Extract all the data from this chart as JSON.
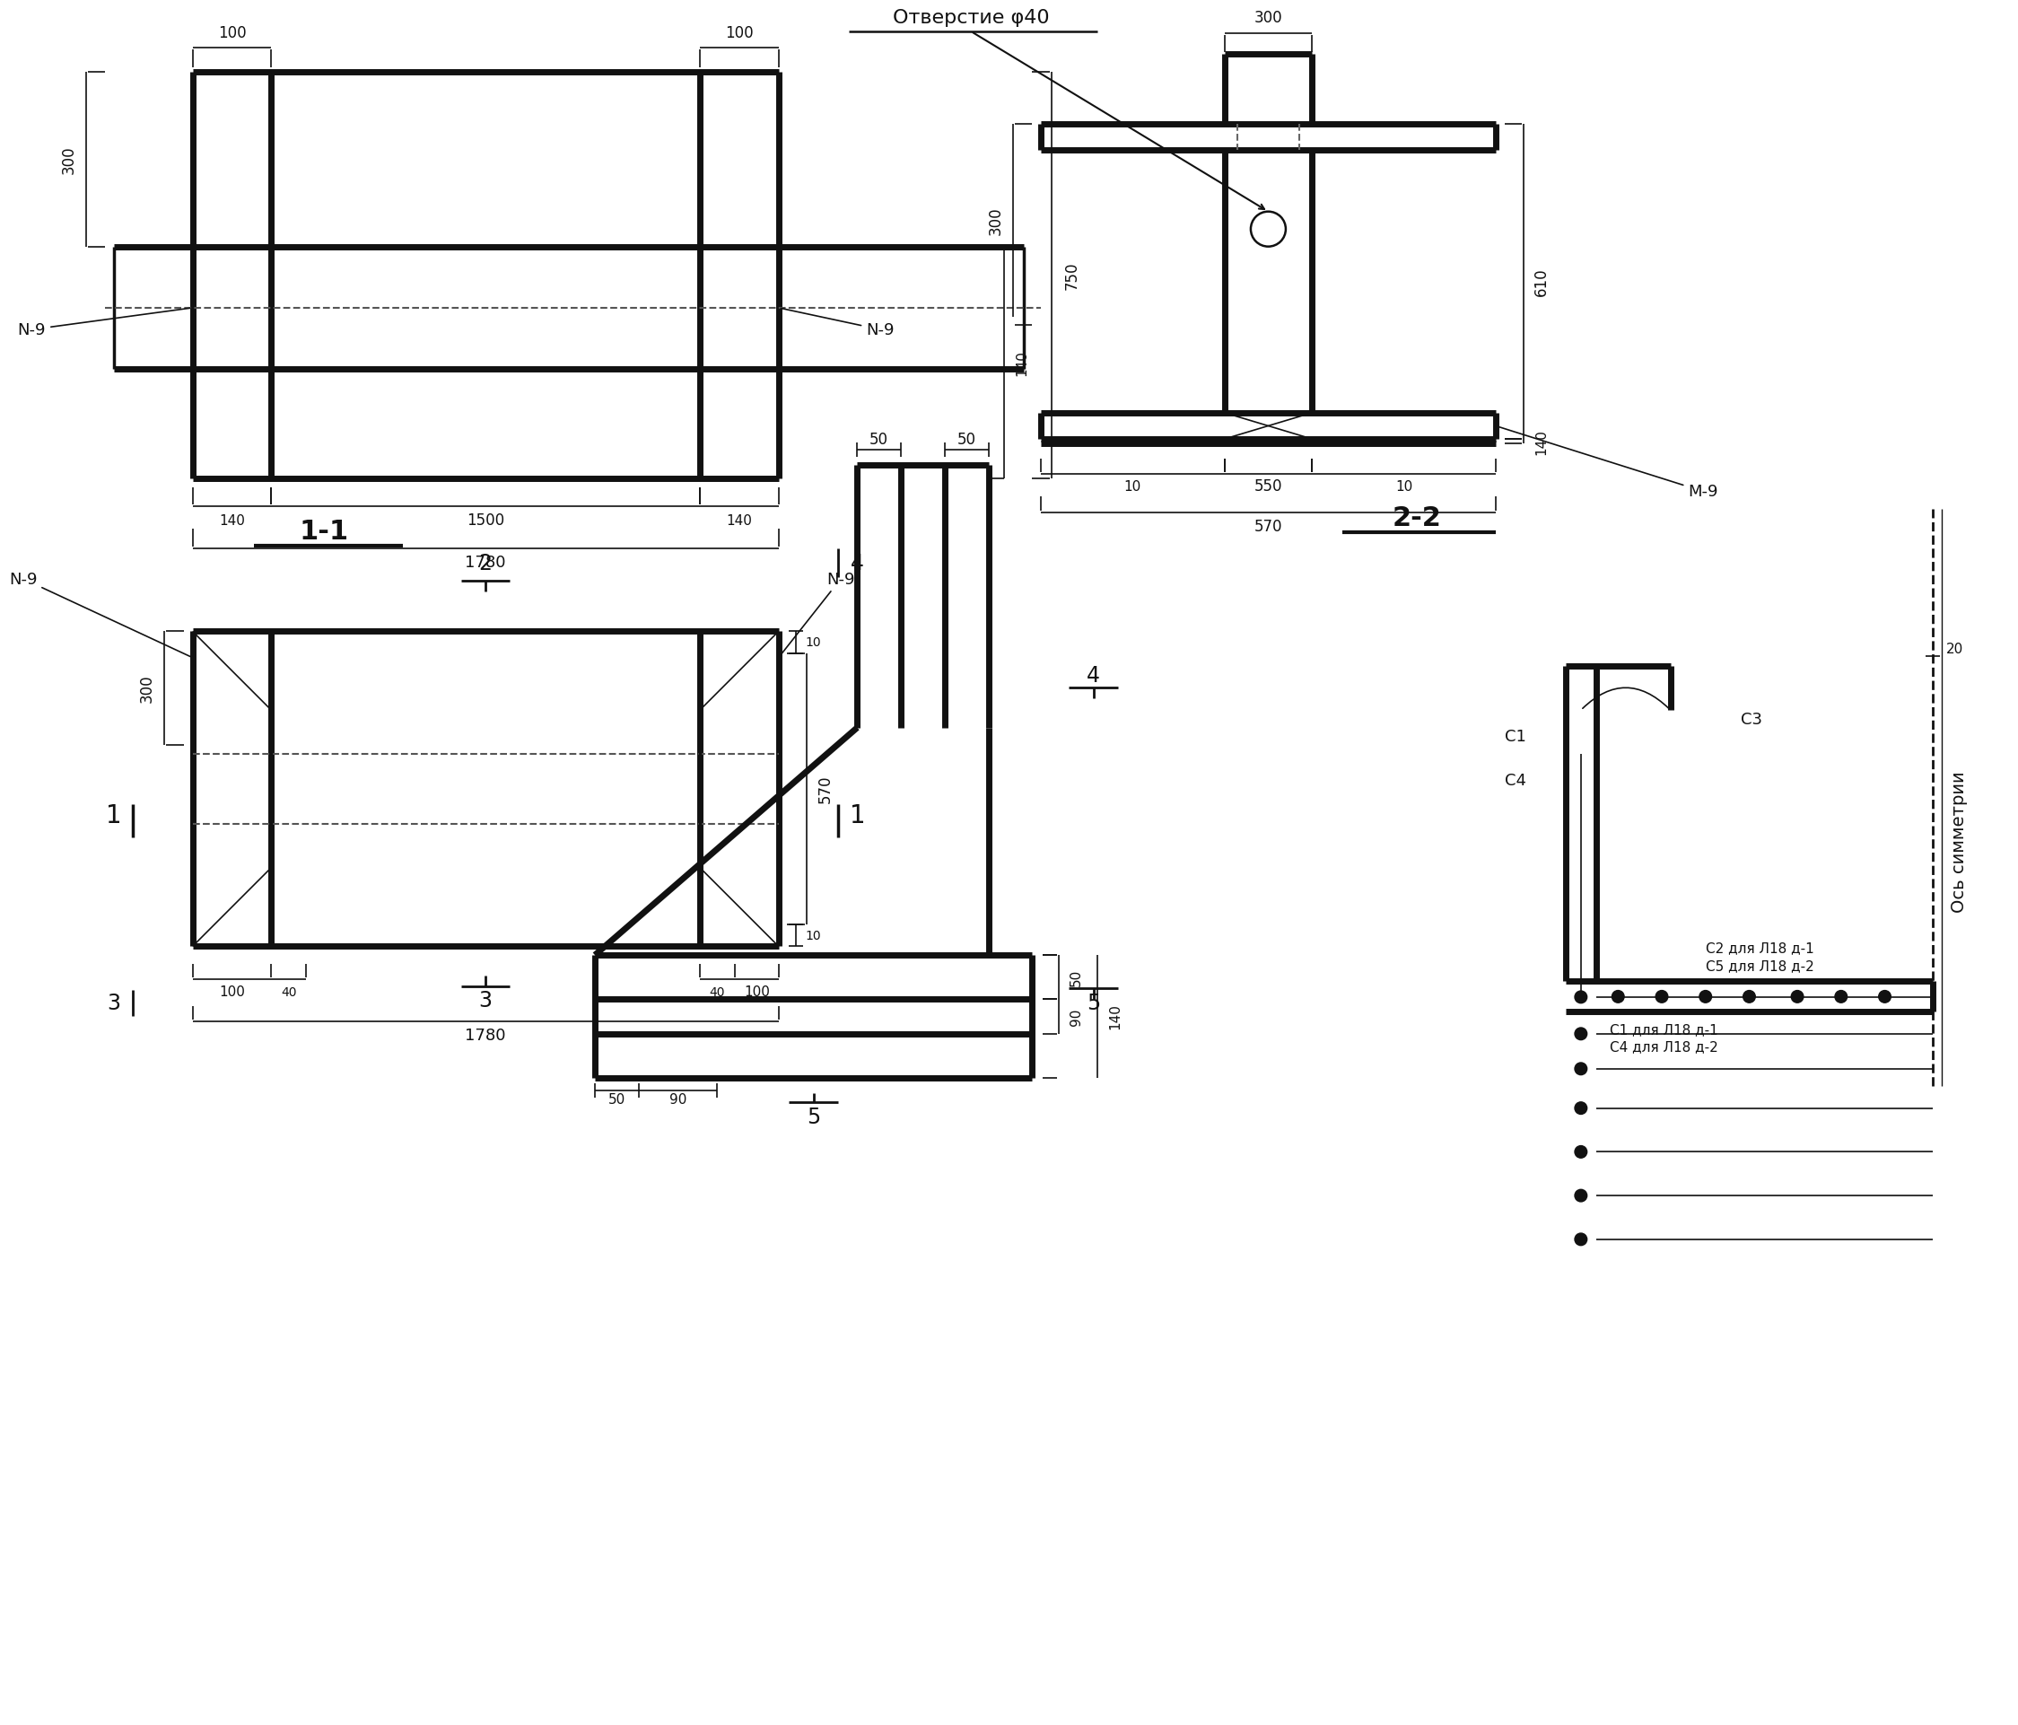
{
  "bg_color": "#ffffff",
  "line_color": "#111111",
  "line_width": 2.5,
  "thin_lw": 1.2,
  "dash_lw": 1.5,
  "views": {
    "top_left": {
      "label": "1-1",
      "dim_100_l": "100",
      "dim_100_r": "100",
      "dim_300": "300",
      "dim_140_l": "140",
      "dim_1500": "1500",
      "dim_140_r": "140",
      "dim_1780": "1780",
      "dim_750": "750",
      "dim_140_side": "140",
      "M9_left": "N-9",
      "M9_right": "N-9"
    },
    "top_right": {
      "label": "2-2",
      "dim_300_top": "300",
      "dim_300_left": "300",
      "dim_610": "610",
      "dim_140": "140",
      "dim_10_l": "10",
      "dim_550": "550",
      "dim_10_r": "10",
      "dim_570": "570",
      "M9": "M-9",
      "otv_label": "Отверстие φ40"
    },
    "bottom_left": {
      "dim_300": "300",
      "dim_570": "570",
      "dim_10_top": "10",
      "dim_10_bot": "10",
      "dim_100_l": "100",
      "dim_40_l": "40",
      "dim_40_r": "40",
      "dim_100_r": "100",
      "dim_1780": "1780",
      "M9_left": "N-9",
      "M9_right": "N-9",
      "cut_2": "2",
      "cut_3": "3",
      "cut_4": "4",
      "cut_1l": "1",
      "cut_1r": "1",
      "cut_3b": "3"
    },
    "bottom_mid": {
      "dim_50_l": "50",
      "dim_50_r": "50",
      "dim_50_bot": "50",
      "dim_90": "90",
      "dim_140": "140",
      "cut_4": "4",
      "cut_5t": "5",
      "cut_5b": "5"
    },
    "bottom_right": {
      "dim_20": "20",
      "C1": "C1",
      "C4": "C4",
      "C3": "C3",
      "C2_label": "C2 для Л18 д-1",
      "C5_label": "C5 для Л18 д-2",
      "C1b_label": "C1 для Л18 д-1",
      "C4b_label": "C4 для Л18 д-2",
      "os_sim": "Ось симметрии"
    }
  }
}
